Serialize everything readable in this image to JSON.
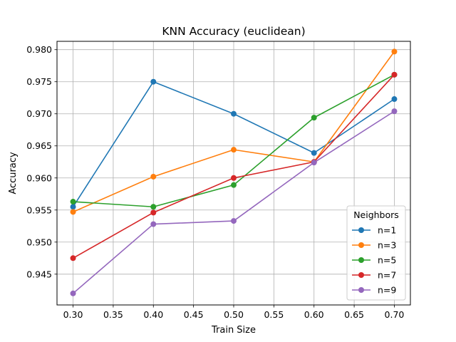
{
  "chart_data": {
    "type": "line",
    "title": "KNN Accuracy (euclidean)",
    "xlabel": "Train Size",
    "ylabel": "Accuracy",
    "x": [
      0.3,
      0.4,
      0.5,
      0.6,
      0.7
    ],
    "xlim": [
      0.28,
      0.72
    ],
    "ylim": [
      0.9402,
      0.9813
    ],
    "xticks": [
      "0.30",
      "0.35",
      "0.40",
      "0.45",
      "0.50",
      "0.55",
      "0.60",
      "0.65",
      "0.70"
    ],
    "yticks": [
      "0.945",
      "0.950",
      "0.955",
      "0.960",
      "0.965",
      "0.970",
      "0.975",
      "0.980"
    ],
    "grid": true,
    "legend": {
      "title": "Neighbors",
      "placement": "lower-right"
    },
    "series": [
      {
        "name": "n=1",
        "color": "#1f77b4",
        "values": [
          0.9555,
          0.975,
          0.97,
          0.9639,
          0.9723
        ]
      },
      {
        "name": "n=3",
        "color": "#ff7f0e",
        "values": [
          0.9547,
          0.9602,
          0.9644,
          0.9625,
          0.9797
        ]
      },
      {
        "name": "n=5",
        "color": "#2ca02c",
        "values": [
          0.9563,
          0.9555,
          0.9589,
          0.9694,
          0.9761
        ]
      },
      {
        "name": "n=7",
        "color": "#d62728",
        "values": [
          0.9475,
          0.9546,
          0.96,
          0.9625,
          0.9761
        ]
      },
      {
        "name": "n=9",
        "color": "#9467bd",
        "values": [
          0.942,
          0.9528,
          0.9533,
          0.9624,
          0.9704
        ]
      }
    ]
  }
}
